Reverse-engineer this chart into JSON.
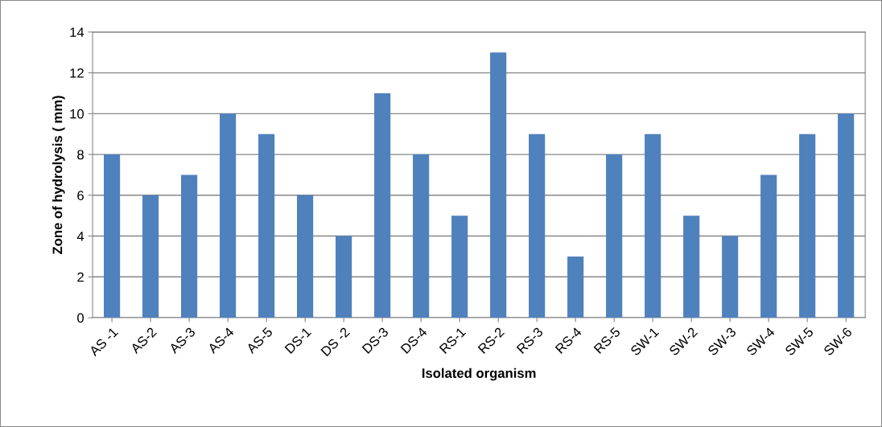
{
  "chart_data": {
    "type": "bar",
    "xlabel": "Isolated organism",
    "ylabel": "Zone of hydrolysis ( mm)",
    "categories": [
      "AS -1",
      "AS-2",
      "AS-3",
      "AS-4",
      "AS-5",
      "DS-1",
      "DS -2",
      "DS-3",
      "DS-4",
      "RS-1",
      "RS-2",
      "RS-3",
      "RS-4",
      "RS-5",
      "SW-1",
      "SW-2",
      "SW-3",
      "SW-4",
      "SW-5",
      "SW-6"
    ],
    "values": [
      8,
      6,
      7,
      10,
      9,
      6,
      4,
      11,
      8,
      5,
      13,
      9,
      3,
      8,
      9,
      5,
      4,
      7,
      9,
      10
    ],
    "color": "#4f81bd",
    "ylim": [
      0,
      14
    ],
    "yticks": [
      0,
      2,
      4,
      6,
      8,
      10,
      12,
      14
    ],
    "grid": "y",
    "legend": false
  }
}
